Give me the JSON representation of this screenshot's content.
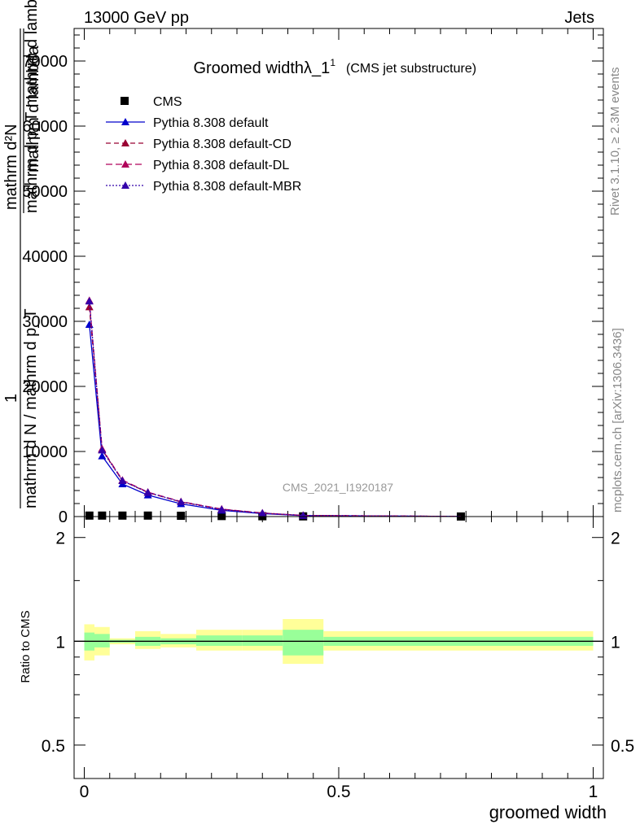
{
  "header": {
    "left": "13000 GeV pp",
    "right": "Jets"
  },
  "side_labels": {
    "rivet": "Rivet 3.1.10, ≥ 2.3M events",
    "mcplots": "mcplots.cern.ch [arXiv:1306.3436]"
  },
  "colors": {
    "default": "#0000cc",
    "default_cd": "#990033",
    "default_dl": "#b0005a",
    "default_mbr": "#3300aa",
    "band_inner": "#99ff99",
    "band_outer": "#ffff99"
  },
  "chart_data": [
    {
      "type": "line",
      "title": "Groomed widthλ_1",
      "title_sup": "1",
      "subtitle": "(CMS jet substructure)",
      "watermark": "CMS_2021_I1920187",
      "ylabel_parts": [
        "1",
        "mathrm d N / mathrm d p_T",
        "mathrm d²N",
        "mathrm d p_T mathrm d lambda",
        "mathrm d lambda"
      ],
      "xlim": [
        -0.02,
        1.02
      ],
      "ylim": [
        0,
        75000
      ],
      "yticks": [
        0,
        10000,
        20000,
        30000,
        40000,
        50000,
        60000,
        70000
      ],
      "ytick_labels": [
        "0",
        "10000",
        "20000",
        "30000",
        "40000",
        "50000",
        "60000",
        "70000"
      ],
      "x": [
        0.01,
        0.035,
        0.075,
        0.125,
        0.19,
        0.27,
        0.35,
        0.43,
        0.74
      ],
      "legend": [
        "CMS",
        "Pythia 8.308 default",
        "Pythia 8.308 default-CD",
        "Pythia 8.308 default-DL",
        "Pythia 8.308 default-MBR"
      ],
      "series": [
        {
          "name": "CMS",
          "style": "marker",
          "values": [
            150,
            150,
            150,
            150,
            120,
            80,
            50,
            30,
            10
          ]
        },
        {
          "name": "Pythia 8.308 default",
          "style": "solid",
          "values": [
            29500,
            9300,
            5000,
            3300,
            1950,
            950,
            450,
            150,
            15
          ]
        },
        {
          "name": "Pythia 8.308 default-CD",
          "style": "dashed",
          "values": [
            32200,
            10300,
            5500,
            3700,
            2250,
            1100,
            520,
            170,
            18
          ]
        },
        {
          "name": "Pythia 8.308 default-DL",
          "style": "dashed",
          "values": [
            33200,
            10400,
            5600,
            3750,
            2300,
            1150,
            550,
            180,
            18
          ]
        },
        {
          "name": "Pythia 8.308 default-MBR",
          "style": "dotted",
          "values": [
            33100,
            10200,
            5500,
            3700,
            2250,
            1100,
            530,
            175,
            17
          ]
        }
      ]
    },
    {
      "type": "area",
      "ylabel": "Ratio to CMS",
      "xlabel": "groomed width",
      "xlim": [
        -0.02,
        1.02
      ],
      "ylim": [
        0.4,
        2.3
      ],
      "log_y": true,
      "xticks": [
        0,
        0.5,
        1
      ],
      "xtick_labels": [
        "0",
        "0.5",
        "1"
      ],
      "yticks": [
        0.5,
        1,
        2
      ],
      "ytick_labels": [
        "0.5",
        "1",
        "2"
      ],
      "bins": [
        {
          "x0": 0.0,
          "x1": 0.02,
          "inner": [
            0.94,
            1.06
          ],
          "outer": [
            0.88,
            1.12
          ]
        },
        {
          "x0": 0.02,
          "x1": 0.05,
          "inner": [
            0.96,
            1.05
          ],
          "outer": [
            0.91,
            1.1
          ]
        },
        {
          "x0": 0.05,
          "x1": 0.1,
          "inner": [
            0.99,
            1.01
          ],
          "outer": [
            0.98,
            1.02
          ]
        },
        {
          "x0": 0.1,
          "x1": 0.15,
          "inner": [
            0.97,
            1.03
          ],
          "outer": [
            0.95,
            1.07
          ]
        },
        {
          "x0": 0.15,
          "x1": 0.22,
          "inner": [
            0.98,
            1.02
          ],
          "outer": [
            0.96,
            1.05
          ]
        },
        {
          "x0": 0.22,
          "x1": 0.31,
          "inner": [
            0.97,
            1.04
          ],
          "outer": [
            0.94,
            1.08
          ]
        },
        {
          "x0": 0.31,
          "x1": 0.39,
          "inner": [
            0.97,
            1.04
          ],
          "outer": [
            0.94,
            1.08
          ]
        },
        {
          "x0": 0.39,
          "x1": 0.47,
          "inner": [
            0.91,
            1.08
          ],
          "outer": [
            0.86,
            1.16
          ]
        },
        {
          "x0": 0.47,
          "x1": 1.0,
          "inner": [
            0.97,
            1.03
          ],
          "outer": [
            0.94,
            1.07
          ]
        }
      ],
      "ratio_line": 1
    }
  ]
}
